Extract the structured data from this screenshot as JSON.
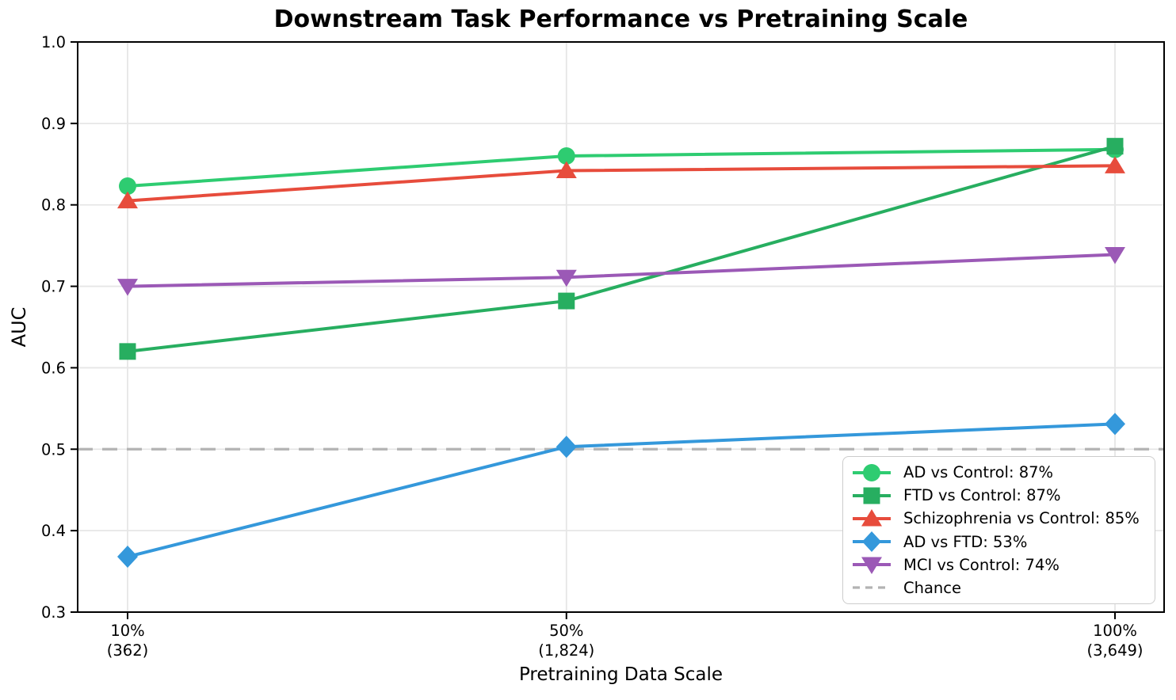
{
  "title": "Downstream Task Performance vs Pretraining Scale",
  "chart_data": {
    "type": "line",
    "title": "Downstream Task Performance vs Pretraining Scale",
    "xlabel": "Pretraining Data Scale",
    "ylabel": "AUC",
    "ylim": [
      0.3,
      1.0
    ],
    "yticks": [
      0.3,
      0.4,
      0.5,
      0.6,
      0.7,
      0.8,
      0.9,
      1.0
    ],
    "ytick_labels": [
      "0.3",
      "0.4",
      "0.5",
      "0.6",
      "0.7",
      "0.8",
      "0.9",
      "1.0"
    ],
    "xticks": [
      {
        "value": 10,
        "label": "10%",
        "sublabel": "(362)"
      },
      {
        "value": 50,
        "label": "50%",
        "sublabel": "(1,824)"
      },
      {
        "value": 100,
        "label": "100%",
        "sublabel": "(3,649)"
      }
    ],
    "grid": true,
    "legend_position": "lower right",
    "x": [
      10,
      50,
      100
    ],
    "series": [
      {
        "name": "AD vs Control: 87%",
        "marker": "circle",
        "color": "#2ecc71",
        "values": [
          0.823,
          0.86,
          0.868
        ]
      },
      {
        "name": "FTD vs Control: 87%",
        "marker": "square",
        "color": "#27ae60",
        "values": [
          0.62,
          0.682,
          0.872
        ]
      },
      {
        "name": "Schizophrenia vs Control: 85%",
        "marker": "triangle-up",
        "color": "#e74c3c",
        "values": [
          0.805,
          0.842,
          0.848
        ]
      },
      {
        "name": "AD vs FTD: 53%",
        "marker": "diamond",
        "color": "#3498db",
        "values": [
          0.368,
          0.503,
          0.531
        ]
      },
      {
        "name": "MCI vs Control: 74%",
        "marker": "triangle-down",
        "color": "#9b59b6",
        "values": [
          0.7,
          0.711,
          0.739
        ]
      }
    ],
    "reference_line": {
      "label": "Chance",
      "value": 0.5,
      "color": "#b3b3b3",
      "style": "dashed"
    },
    "colors": {
      "grid": "#e6e6e6",
      "spine": "#000000",
      "text": "#000000",
      "legend_border": "#cccccc"
    }
  }
}
